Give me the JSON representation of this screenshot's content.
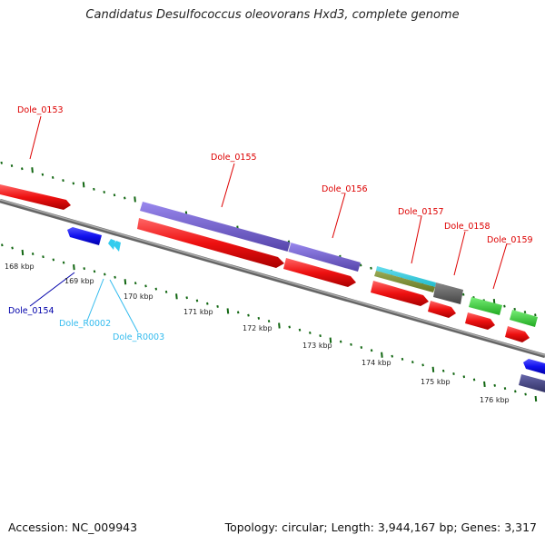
{
  "title": "Candidatus Desulfococcus oleovorans Hxd3, complete genome",
  "footer": {
    "accession": "Accession: NC_009943",
    "stats": "Topology: circular; Length: 3,944,167 bp; Genes: 3,317"
  },
  "ruler": {
    "labels": [
      "168 kbp",
      "169 kbp",
      "170 kbp",
      "171 kbp",
      "172 kbp",
      "173 kbp",
      "174 kbp",
      "175 kbp",
      "176 kbp"
    ]
  },
  "gene_labels": [
    {
      "text": "Dole_0153",
      "color": "#dd0000"
    },
    {
      "text": "Dole_0154",
      "color": "#0000aa"
    },
    {
      "text": "Dole_R0002",
      "color": "#33bbee"
    },
    {
      "text": "Dole_R0003",
      "color": "#33bbee"
    },
    {
      "text": "Dole_0155",
      "color": "#dd0000"
    },
    {
      "text": "Dole_0156",
      "color": "#dd0000"
    },
    {
      "text": "Dole_0157",
      "color": "#dd0000"
    },
    {
      "text": "Dole_0158",
      "color": "#dd0000"
    },
    {
      "text": "Dole_0159",
      "color": "#dd0000"
    }
  ],
  "colors": {
    "cds_red": "#ee1111",
    "cds_blue": "#1111ee",
    "rrna_cyan": "#33ccee",
    "purple_feature": "#7766cc",
    "teal_feature": "#22bbcc",
    "olive_feature": "#778833",
    "gray_feature": "#666666",
    "green_feature": "#33cc33",
    "tick_green": "#116611",
    "backbone": "#888888"
  }
}
